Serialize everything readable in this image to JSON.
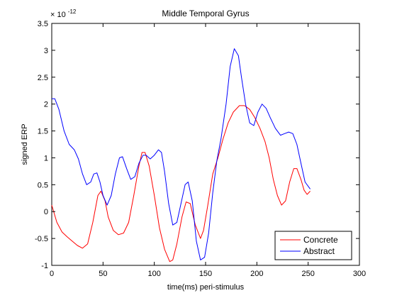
{
  "chart_data": {
    "type": "line",
    "title": "Middle Temporal Gyrus",
    "xlabel": "time(ms) peri-stimulus",
    "ylabel": "signed ERP",
    "xlim": [
      0,
      300
    ],
    "ylim": [
      -1,
      3.5
    ],
    "y_multiplier_label": "× 10",
    "y_multiplier_exponent": "-12",
    "x_ticks": [
      0,
      50,
      100,
      150,
      200,
      250,
      300
    ],
    "y_ticks": [
      -1,
      -0.5,
      0,
      0.5,
      1,
      1.5,
      2,
      2.5,
      3,
      3.5
    ],
    "grid": false,
    "legend_position": "bottom-right",
    "series": [
      {
        "name": "Concrete",
        "color": "#ff0000",
        "points": [
          [
            0,
            0.12
          ],
          [
            5,
            -0.2
          ],
          [
            10,
            -0.38
          ],
          [
            15,
            -0.47
          ],
          [
            20,
            -0.55
          ],
          [
            25,
            -0.63
          ],
          [
            30,
            -0.68
          ],
          [
            35,
            -0.6
          ],
          [
            40,
            -0.2
          ],
          [
            45,
            0.3
          ],
          [
            48,
            0.38
          ],
          [
            52,
            0.2
          ],
          [
            55,
            -0.1
          ],
          [
            60,
            -0.35
          ],
          [
            65,
            -0.43
          ],
          [
            70,
            -0.4
          ],
          [
            75,
            -0.2
          ],
          [
            80,
            0.3
          ],
          [
            85,
            0.85
          ],
          [
            88,
            1.1
          ],
          [
            91,
            1.1
          ],
          [
            95,
            0.85
          ],
          [
            100,
            0.3
          ],
          [
            105,
            -0.3
          ],
          [
            110,
            -0.7
          ],
          [
            115,
            -0.93
          ],
          [
            118,
            -0.9
          ],
          [
            122,
            -0.6
          ],
          [
            127,
            -0.1
          ],
          [
            131,
            0.18
          ],
          [
            135,
            0.15
          ],
          [
            140,
            -0.25
          ],
          [
            145,
            -0.5
          ],
          [
            148,
            -0.35
          ],
          [
            152,
            0.1
          ],
          [
            157,
            0.7
          ],
          [
            162,
            1.0
          ],
          [
            167,
            1.35
          ],
          [
            172,
            1.65
          ],
          [
            177,
            1.85
          ],
          [
            183,
            1.97
          ],
          [
            188,
            1.97
          ],
          [
            193,
            1.9
          ],
          [
            198,
            1.75
          ],
          [
            203,
            1.55
          ],
          [
            208,
            1.3
          ],
          [
            212,
            1.0
          ],
          [
            216,
            0.6
          ],
          [
            220,
            0.3
          ],
          [
            224,
            0.12
          ],
          [
            228,
            0.2
          ],
          [
            232,
            0.55
          ],
          [
            236,
            0.8
          ],
          [
            239,
            0.8
          ],
          [
            243,
            0.6
          ],
          [
            246,
            0.4
          ],
          [
            249,
            0.32
          ],
          [
            252,
            0.38
          ]
        ]
      },
      {
        "name": "Abstract",
        "color": "#0000ff",
        "points": [
          [
            0,
            2.1
          ],
          [
            3,
            2.1
          ],
          [
            7,
            1.9
          ],
          [
            12,
            1.5
          ],
          [
            17,
            1.25
          ],
          [
            22,
            1.15
          ],
          [
            26,
            0.98
          ],
          [
            30,
            0.7
          ],
          [
            34,
            0.5
          ],
          [
            38,
            0.55
          ],
          [
            41,
            0.7
          ],
          [
            44,
            0.72
          ],
          [
            47,
            0.55
          ],
          [
            50,
            0.3
          ],
          [
            54,
            0.12
          ],
          [
            58,
            0.3
          ],
          [
            62,
            0.7
          ],
          [
            66,
            1.0
          ],
          [
            69,
            1.02
          ],
          [
            73,
            0.8
          ],
          [
            77,
            0.6
          ],
          [
            81,
            0.65
          ],
          [
            85,
            0.9
          ],
          [
            89,
            1.05
          ],
          [
            92,
            1.05
          ],
          [
            96,
            0.98
          ],
          [
            100,
            1.05
          ],
          [
            104,
            1.15
          ],
          [
            107,
            1.1
          ],
          [
            110,
            0.75
          ],
          [
            114,
            0.15
          ],
          [
            118,
            -0.25
          ],
          [
            122,
            -0.2
          ],
          [
            126,
            0.15
          ],
          [
            130,
            0.5
          ],
          [
            133,
            0.55
          ],
          [
            137,
            0.2
          ],
          [
            141,
            -0.55
          ],
          [
            145,
            -0.9
          ],
          [
            149,
            -0.85
          ],
          [
            153,
            -0.4
          ],
          [
            157,
            0.35
          ],
          [
            161,
            0.95
          ],
          [
            165,
            1.35
          ],
          [
            170,
            2.0
          ],
          [
            174,
            2.7
          ],
          [
            178,
            3.03
          ],
          [
            182,
            2.9
          ],
          [
            185,
            2.5
          ],
          [
            189,
            2.0
          ],
          [
            193,
            1.65
          ],
          [
            197,
            1.6
          ],
          [
            201,
            1.85
          ],
          [
            205,
            2.0
          ],
          [
            209,
            1.92
          ],
          [
            213,
            1.75
          ],
          [
            218,
            1.55
          ],
          [
            223,
            1.42
          ],
          [
            227,
            1.45
          ],
          [
            231,
            1.48
          ],
          [
            235,
            1.45
          ],
          [
            239,
            1.25
          ],
          [
            243,
            0.9
          ],
          [
            247,
            0.55
          ],
          [
            252,
            0.42
          ]
        ]
      }
    ]
  }
}
